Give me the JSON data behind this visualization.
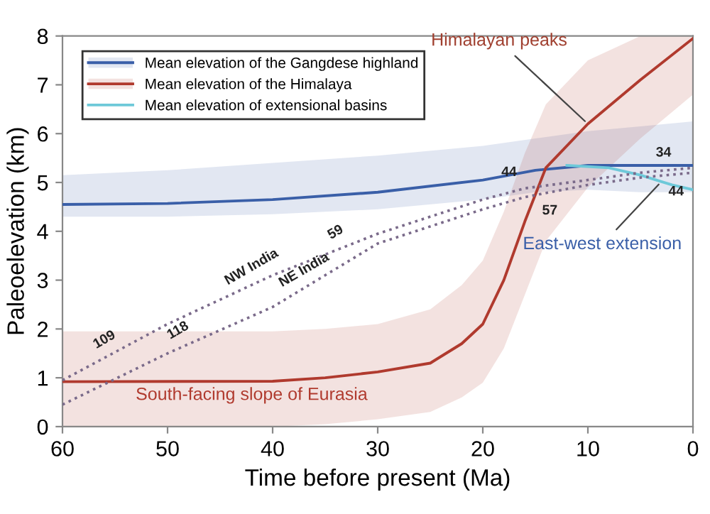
{
  "chart_data": {
    "type": "line",
    "xlabel": "Time before present (Ma)",
    "ylabel": "Paleoelevation (km)",
    "series": [
      {
        "name": "Mean elevation of the Gangdese highland",
        "color": "#3a5fa8",
        "x": [
          60,
          50,
          40,
          30,
          20,
          15,
          10,
          5,
          0
        ],
        "values": [
          4.55,
          4.57,
          4.65,
          4.8,
          5.05,
          5.25,
          5.35,
          5.35,
          5.35
        ],
        "lower": [
          4.3,
          4.3,
          4.35,
          4.45,
          4.65,
          4.8,
          4.85,
          4.8,
          4.8
        ],
        "upper": [
          5.15,
          5.25,
          5.4,
          5.55,
          5.75,
          5.9,
          6.05,
          6.15,
          6.25
        ]
      },
      {
        "name": "Mean elevation of the Himalaya",
        "color": "#b03a2e",
        "x": [
          60,
          40,
          35,
          30,
          25,
          22,
          20,
          18,
          16,
          14,
          10,
          5,
          0
        ],
        "values": [
          0.92,
          0.93,
          1.0,
          1.12,
          1.3,
          1.7,
          2.1,
          3.0,
          4.2,
          5.3,
          6.2,
          7.1,
          7.95
        ],
        "lower": [
          0.0,
          0.0,
          0.05,
          0.15,
          0.3,
          0.6,
          0.9,
          1.6,
          2.7,
          3.8,
          4.9,
          5.9,
          6.8
        ],
        "upper": [
          1.95,
          1.95,
          2.0,
          2.1,
          2.4,
          2.9,
          3.4,
          4.4,
          5.6,
          6.6,
          7.5,
          8.0,
          8.0
        ]
      },
      {
        "name": "Mean elevation of extensional basins",
        "color": "#6ec9d9",
        "x": [
          12,
          8,
          5,
          2,
          0
        ],
        "values": [
          5.35,
          5.3,
          5.15,
          4.95,
          4.85
        ]
      },
      {
        "color": "#7a6a8a",
        "line_style": "dotted",
        "x": [
          60,
          50,
          40,
          30,
          20,
          16,
          10,
          5,
          0
        ],
        "values": [
          0.95,
          2.1,
          3.1,
          3.95,
          4.65,
          4.88,
          5.05,
          5.2,
          5.3
        ]
      },
      {
        "color": "#7a6a8a",
        "line_style": "dotted",
        "x": [
          60,
          50,
          40,
          30,
          20,
          16,
          10,
          5,
          0
        ],
        "values": [
          0.45,
          1.5,
          2.45,
          3.75,
          4.45,
          4.7,
          4.95,
          5.1,
          5.2
        ]
      }
    ],
    "xlim": [
      60,
      0
    ],
    "ylim": [
      0,
      8
    ],
    "xticks": [
      60,
      50,
      40,
      30,
      20,
      10,
      0
    ],
    "yticks": [
      0,
      1,
      2,
      3,
      4,
      5,
      6,
      7,
      8
    ],
    "grid": false,
    "legend": "top left",
    "annotations": [
      {
        "text": "Himalayan peaks",
        "x": 10,
        "y": 6.2
      },
      {
        "text": "East-west extension",
        "x": 3,
        "y": 5.02
      },
      "South-facing slope of Eurasia",
      {
        "text": "109",
        "x": 56,
        "y": 1.41
      },
      {
        "text": "59",
        "x": 34,
        "y": 3.61
      },
      {
        "text": "NW India",
        "x": 42,
        "y": 2.9
      },
      {
        "text": "118",
        "x": 49,
        "y": 1.6
      },
      {
        "text": "NE India",
        "x": 37,
        "y": 2.84
      },
      {
        "text": "44",
        "x": 16,
        "y": 4.88
      },
      {
        "text": "57",
        "x": 14,
        "y": 4.78
      },
      {
        "text": "34",
        "x": 2.8,
        "y": 5.24
      },
      {
        "text": "44",
        "x": 1.6,
        "y": 5.17
      }
    ]
  }
}
